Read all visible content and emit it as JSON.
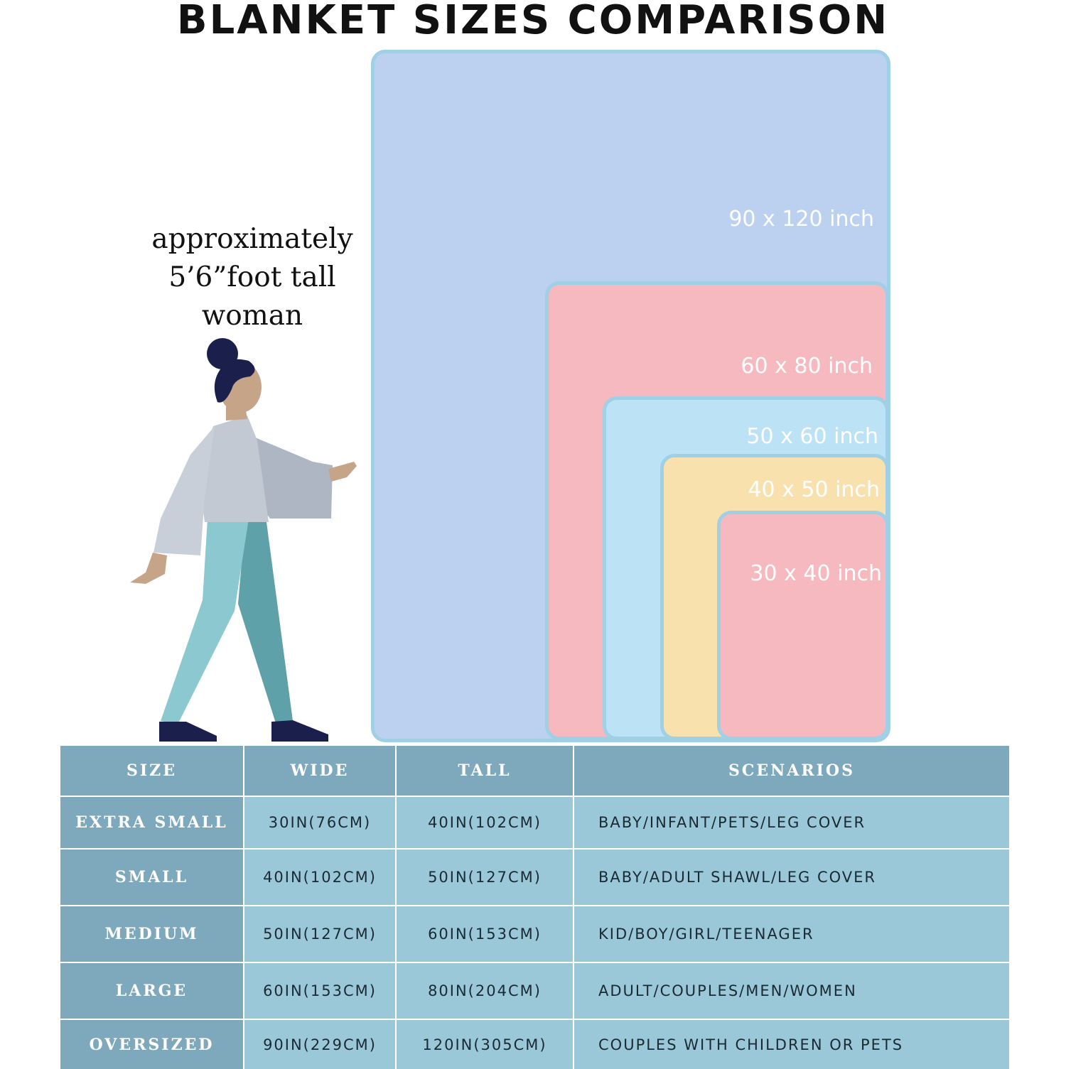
{
  "title": "BLANKET SIZES COMPARISON",
  "caption": [
    "approximately",
    "5’6”foot tall",
    "woman"
  ],
  "blankets": [
    {
      "label": "90 x 120 inch",
      "color": "#bcd0f0"
    },
    {
      "label": "60 x 80 inch",
      "color": "#f6b9c0"
    },
    {
      "label": "50 x 60 inch",
      "color": "#bce3f5"
    },
    {
      "label": "40 x 50 inch",
      "color": "#f9e1ad"
    },
    {
      "label": "30 x 40 inch",
      "color": "#f6b9c0"
    }
  ],
  "table": {
    "headers": [
      "SIZE",
      "WIDE",
      "TALL",
      "SCENARIOS"
    ],
    "rows": [
      {
        "size": "EXTRA SMALL",
        "wide": "30IN(76CM)",
        "tall": "40IN(102CM)",
        "scenario": "BABY/INFANT/PETS/LEG COVER"
      },
      {
        "size": "SMALL",
        "wide": "40IN(102CM)",
        "tall": "50IN(127CM)",
        "scenario": "BABY/ADULT SHAWL/LEG COVER"
      },
      {
        "size": "MEDIUM",
        "wide": "50IN(127CM)",
        "tall": "60IN(153CM)",
        "scenario": "KID/BOY/GIRL/TEENAGER"
      },
      {
        "size": "LARGE",
        "wide": "60IN(153CM)",
        "tall": "80IN(204CM)",
        "scenario": "ADULT/COUPLES/MEN/WOMEN"
      },
      {
        "size": "OVERSIZED",
        "wide": "90IN(229CM)",
        "tall": "120IN(305CM)",
        "scenario": "COUPLES WITH CHILDREN OR PETS"
      }
    ]
  }
}
